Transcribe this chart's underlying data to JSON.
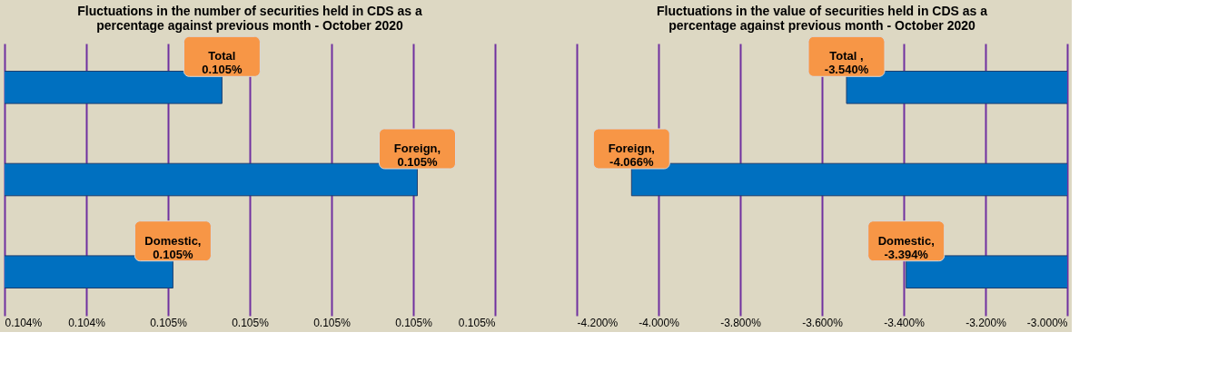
{
  "chart_data": [
    {
      "type": "bar",
      "orientation": "horizontal",
      "title": [
        "Fluctuations in the number of securities held in CDS as a",
        "percentage against previous month - October 2020"
      ],
      "categories": [
        null,
        null,
        null
      ],
      "values": [
        0.104566,
        0.104805,
        0.104506
      ],
      "value_labels": [
        "Total\n0.105%",
        "Foreign,\n0.105%",
        "Domestic,\n0.105%"
      ],
      "color": "#0070c0",
      "xlim": [
        0.1043,
        0.1049
      ],
      "xticks": [
        {
          "value": 0.1043,
          "label": "0.104%"
        },
        {
          "value": 0.1044,
          "label": "0.104%"
        },
        {
          "value": 0.1045,
          "label": "0.105%"
        },
        {
          "value": 0.1046,
          "label": "0.105%"
        },
        {
          "value": 0.1047,
          "label": "0.105%"
        },
        {
          "value": 0.1048,
          "label": "0.105%"
        },
        {
          "value": 0.1049,
          "label": "0.105%"
        }
      ],
      "grid": "x",
      "tick_labels": "x"
    },
    {
      "type": "bar",
      "orientation": "horizontal",
      "title": [
        "Fluctuations in the value of securities held in CDS as a",
        "percentage against previous month - October 2020"
      ],
      "categories": [
        null,
        null,
        null
      ],
      "values": [
        -3.54,
        -4.066,
        -3.394
      ],
      "value_labels": [
        "Total ,\n-3.540%",
        "Foreign,\n-4.066%",
        "Domestic,\n-3.394%"
      ],
      "color": "#0070c0",
      "xlim": [
        -4.2,
        -3.0
      ],
      "xticks": [
        {
          "value": -4.2,
          "label": "-4.200%"
        },
        {
          "value": -4.0,
          "label": "-4.000%"
        },
        {
          "value": -3.8,
          "label": "-3.800%"
        },
        {
          "value": -3.6,
          "label": "-3.600%"
        },
        {
          "value": -3.4,
          "label": "-3.400%"
        },
        {
          "value": -3.2,
          "label": "-3.200%"
        },
        {
          "value": -3.0,
          "label": "-3.000%"
        }
      ],
      "grid": "x",
      "tick_labels": "x"
    }
  ]
}
